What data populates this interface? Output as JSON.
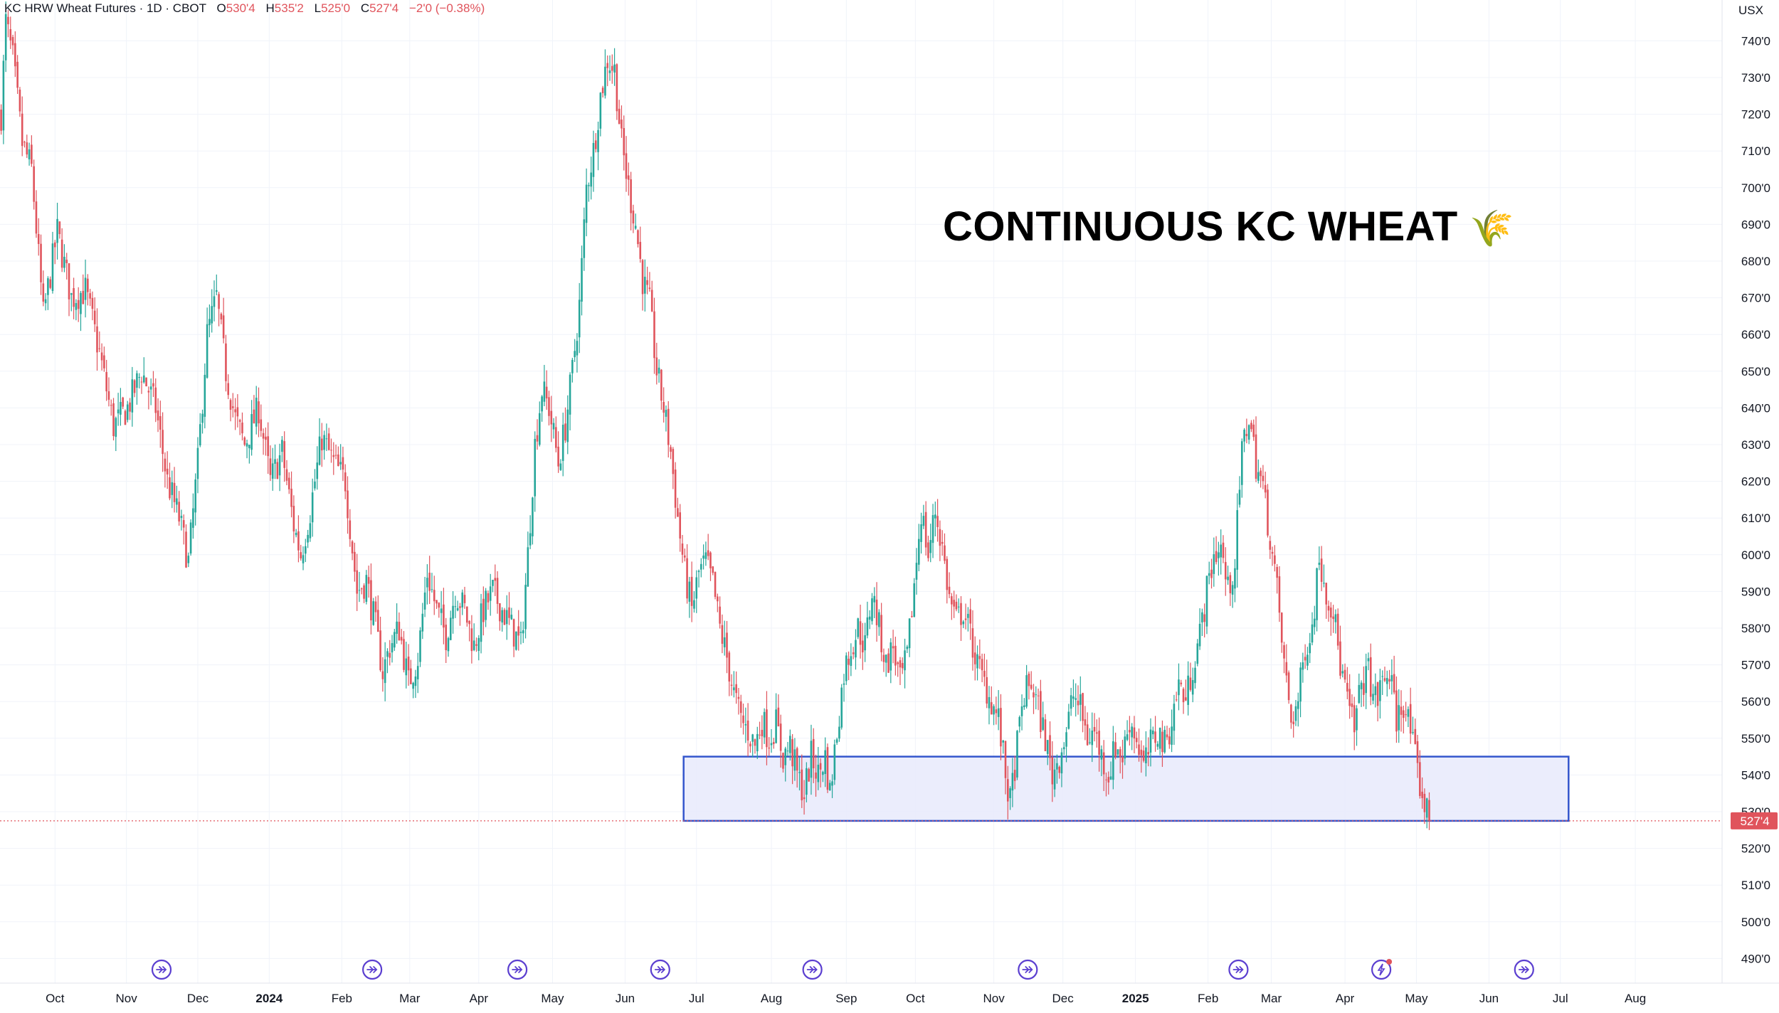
{
  "legend": {
    "symbol": "KC HRW Wheat Futures · 1D · CBOT",
    "open_label": "O",
    "open": "530'4",
    "high_label": "H",
    "high": "535'2",
    "low_label": "L",
    "low": "525'0",
    "close_label": "C",
    "close": "527'4",
    "change": "−2'0 (−0.38%)"
  },
  "annotation": {
    "title": "CONTINUOUS KC WHEAT",
    "emoji": "🌾"
  },
  "currency": "USX",
  "last_price_label": "527'4",
  "colors": {
    "up": "#26a69a",
    "down": "#e0545c",
    "grid": "#f0f3fa",
    "zone_fill": "#e8eafc",
    "zone_stroke": "#3355cc",
    "event_icon": "#5b3fd0",
    "last_price_bg": "#e0545c"
  },
  "chart_data": {
    "type": "candlestick",
    "title": "CONTINUOUS KC WHEAT",
    "series_name": "KC HRW Wheat Futures",
    "interval": "1D",
    "exchange": "CBOT",
    "currency": "USX",
    "y_axis": {
      "ylim": [
        485,
        752
      ],
      "ticks": [
        490,
        500,
        510,
        520,
        530,
        540,
        550,
        560,
        570,
        580,
        590,
        600,
        610,
        620,
        630,
        640,
        650,
        660,
        670,
        680,
        690,
        700,
        710,
        720,
        730,
        740
      ],
      "tick_labels": [
        "490'0",
        "500'0",
        "510'0",
        "520'0",
        "530'0",
        "540'0",
        "550'0",
        "560'0",
        "570'0",
        "580'0",
        "590'0",
        "600'0",
        "610'0",
        "620'0",
        "630'0",
        "640'0",
        "650'0",
        "660'0",
        "670'0",
        "680'0",
        "690'0",
        "700'0",
        "710'0",
        "720'0",
        "730'0",
        "740'0"
      ],
      "position": "right"
    },
    "x_axis": {
      "ticks": [
        {
          "label": "Oct",
          "bold": false,
          "t": 23.5
        },
        {
          "label": "Nov",
          "bold": false,
          "t": 54
        },
        {
          "label": "Dec",
          "bold": false,
          "t": 84.5
        },
        {
          "label": "2024",
          "bold": true,
          "t": 115
        },
        {
          "label": "Feb",
          "bold": false,
          "t": 146
        },
        {
          "label": "Mar",
          "bold": false,
          "t": 175
        },
        {
          "label": "Apr",
          "bold": false,
          "t": 204.5
        },
        {
          "label": "May",
          "bold": false,
          "t": 236
        },
        {
          "label": "Jun",
          "bold": false,
          "t": 267
        },
        {
          "label": "Jul",
          "bold": false,
          "t": 297.5
        },
        {
          "label": "Aug",
          "bold": false,
          "t": 329.5
        },
        {
          "label": "Sep",
          "bold": false,
          "t": 361.5
        },
        {
          "label": "Oct",
          "bold": false,
          "t": 391
        },
        {
          "label": "Nov",
          "bold": false,
          "t": 424.5
        },
        {
          "label": "Dec",
          "bold": false,
          "t": 454
        },
        {
          "label": "2025",
          "bold": true,
          "t": 485
        },
        {
          "label": "Feb",
          "bold": false,
          "t": 516
        },
        {
          "label": "Mar",
          "bold": false,
          "t": 543
        },
        {
          "label": "Apr",
          "bold": false,
          "t": 574.5
        },
        {
          "label": "May",
          "bold": false,
          "t": 605
        },
        {
          "label": "Jun",
          "bold": false,
          "t": 636
        },
        {
          "label": "Jul",
          "bold": false,
          "t": 666.5
        },
        {
          "label": "Aug",
          "bold": false,
          "t": 698.5
        }
      ],
      "range": [
        0,
        730
      ]
    },
    "price_anchors": [
      [
        0,
        720
      ],
      [
        2,
        745
      ],
      [
        5,
        735
      ],
      [
        9,
        712
      ],
      [
        13,
        705
      ],
      [
        18,
        665
      ],
      [
        24,
        688
      ],
      [
        30,
        670
      ],
      [
        36,
        672
      ],
      [
        42,
        655
      ],
      [
        48,
        635
      ],
      [
        54,
        640
      ],
      [
        60,
        650
      ],
      [
        66,
        640
      ],
      [
        71,
        620
      ],
      [
        76,
        610
      ],
      [
        80,
        598
      ],
      [
        84,
        625
      ],
      [
        88,
        660
      ],
      [
        92,
        670
      ],
      [
        96,
        650
      ],
      [
        100,
        637
      ],
      [
        104,
        630
      ],
      [
        110,
        640
      ],
      [
        115,
        620
      ],
      [
        120,
        628
      ],
      [
        125,
        608
      ],
      [
        128,
        600
      ],
      [
        132,
        612
      ],
      [
        137,
        632
      ],
      [
        142,
        625
      ],
      [
        147,
        620
      ],
      [
        152,
        590
      ],
      [
        156,
        593
      ],
      [
        160,
        580
      ],
      [
        163,
        568
      ],
      [
        166,
        575
      ],
      [
        170,
        580
      ],
      [
        174,
        565
      ],
      [
        178,
        572
      ],
      [
        182,
        595
      ],
      [
        186,
        585
      ],
      [
        190,
        578
      ],
      [
        194,
        590
      ],
      [
        198,
        585
      ],
      [
        202,
        575
      ],
      [
        206,
        585
      ],
      [
        210,
        590
      ],
      [
        214,
        585
      ],
      [
        218,
        580
      ],
      [
        222,
        575
      ],
      [
        225,
        600
      ],
      [
        228,
        630
      ],
      [
        231,
        645
      ],
      [
        234,
        640
      ],
      [
        238,
        625
      ],
      [
        241,
        635
      ],
      [
        244,
        650
      ],
      [
        247,
        668
      ],
      [
        250,
        700
      ],
      [
        253,
        710
      ],
      [
        256,
        725
      ],
      [
        259,
        735
      ],
      [
        262,
        732
      ],
      [
        265,
        712
      ],
      [
        268,
        700
      ],
      [
        271,
        690
      ],
      [
        274,
        675
      ],
      [
        277,
        668
      ],
      [
        280,
        650
      ],
      [
        283,
        640
      ],
      [
        286,
        628
      ],
      [
        289,
        610
      ],
      [
        292,
        595
      ],
      [
        295,
        585
      ],
      [
        298,
        595
      ],
      [
        301,
        598
      ],
      [
        304,
        592
      ],
      [
        307,
        580
      ],
      [
        310,
        572
      ],
      [
        313,
        562
      ],
      [
        316,
        555
      ],
      [
        319,
        552
      ],
      [
        322,
        548
      ],
      [
        325,
        555
      ],
      [
        328,
        550
      ],
      [
        331,
        554
      ],
      [
        334,
        545
      ],
      [
        337,
        548
      ],
      [
        340,
        540
      ],
      [
        343,
        535
      ],
      [
        346,
        545
      ],
      [
        349,
        540
      ],
      [
        352,
        545
      ],
      [
        354,
        535
      ],
      [
        357,
        552
      ],
      [
        360,
        568
      ],
      [
        363,
        575
      ],
      [
        366,
        580
      ],
      [
        369,
        575
      ],
      [
        372,
        590
      ],
      [
        375,
        580
      ],
      [
        378,
        570
      ],
      [
        381,
        575
      ],
      [
        384,
        565
      ],
      [
        387,
        572
      ],
      [
        390,
        592
      ],
      [
        393,
        612
      ],
      [
        396,
        600
      ],
      [
        399,
        612
      ],
      [
        402,
        602
      ],
      [
        405,
        588
      ],
      [
        408,
        582
      ],
      [
        411,
        585
      ],
      [
        414,
        578
      ],
      [
        417,
        570
      ],
      [
        420,
        565
      ],
      [
        423,
        560
      ],
      [
        426,
        555
      ],
      [
        429,
        540
      ],
      [
        431,
        532
      ],
      [
        434,
        548
      ],
      [
        437,
        562
      ],
      [
        440,
        565
      ],
      [
        443,
        558
      ],
      [
        446,
        550
      ],
      [
        449,
        540
      ],
      [
        452,
        545
      ],
      [
        455,
        552
      ],
      [
        458,
        562
      ],
      [
        461,
        558
      ],
      [
        464,
        550
      ],
      [
        467,
        552
      ],
      [
        470,
        545
      ],
      [
        473,
        540
      ],
      [
        476,
        548
      ],
      [
        479,
        545
      ],
      [
        482,
        555
      ],
      [
        485,
        550
      ],
      [
        488,
        542
      ],
      [
        491,
        548
      ],
      [
        494,
        552
      ],
      [
        497,
        548
      ],
      [
        500,
        555
      ],
      [
        503,
        565
      ],
      [
        506,
        560
      ],
      [
        509,
        570
      ],
      [
        512,
        578
      ],
      [
        515,
        590
      ],
      [
        518,
        600
      ],
      [
        521,
        602
      ],
      [
        524,
        590
      ],
      [
        527,
        598
      ],
      [
        530,
        628
      ],
      [
        533,
        638
      ],
      [
        536,
        625
      ],
      [
        539,
        618
      ],
      [
        542,
        605
      ],
      [
        545,
        590
      ],
      [
        548,
        570
      ],
      [
        551,
        555
      ],
      [
        554,
        560
      ],
      [
        557,
        575
      ],
      [
        560,
        580
      ],
      [
        563,
        600
      ],
      [
        566,
        590
      ],
      [
        569,
        585
      ],
      [
        572,
        570
      ],
      [
        575,
        560
      ],
      [
        578,
        552
      ],
      [
        581,
        565
      ],
      [
        584,
        568
      ],
      [
        587,
        560
      ],
      [
        590,
        565
      ],
      [
        593,
        568
      ],
      [
        596,
        555
      ],
      [
        599,
        560
      ],
      [
        602,
        552
      ],
      [
        605,
        540
      ],
      [
        608,
        532
      ],
      [
        610,
        527.5
      ]
    ],
    "last": {
      "open": "530'4",
      "high": "535'2",
      "low": "525'0",
      "close": "527'4",
      "change": "−2'0 (−0.38%)"
    },
    "support_zone": {
      "t_start": 292,
      "t_end": 670,
      "price_low": 527.5,
      "price_high": 545
    },
    "event_markers_t": [
      69,
      159,
      221,
      282,
      347,
      439,
      529,
      590,
      651
    ],
    "grid": true
  }
}
